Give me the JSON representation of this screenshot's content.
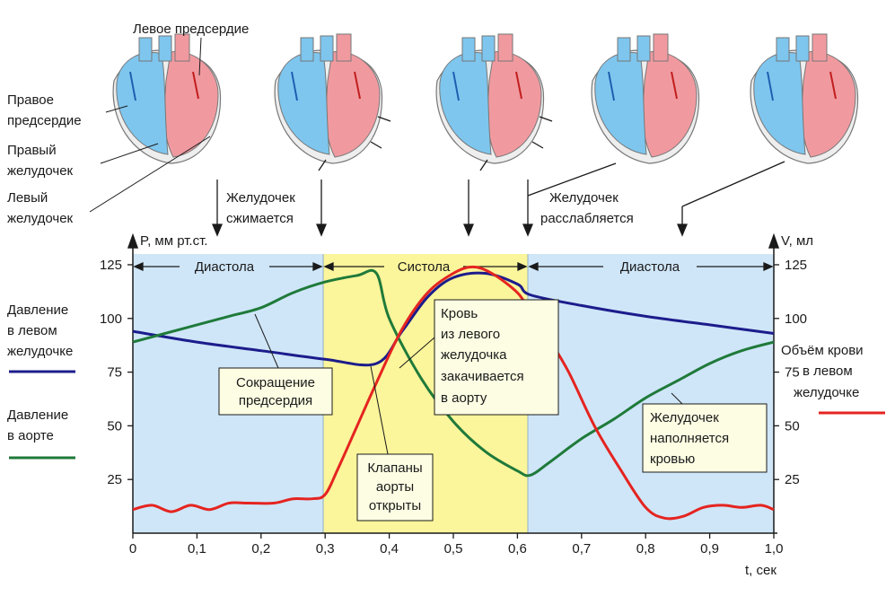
{
  "colors": {
    "diastole_bg": "#cfe6f8",
    "systole_bg": "#fbf59b",
    "ventricle_pressure": "#1c1c8c",
    "aorta_pressure": "#1f7a3a",
    "ventricle_volume": "#e52420",
    "heart_red": "#f09aa0",
    "heart_blue": "#7ec6ee",
    "annotation_box": "#fdfde3"
  },
  "hearts": {
    "left_atrium": "Левое предсердие",
    "right_atrium": [
      "Правое",
      "предсердие"
    ],
    "right_ventricle": [
      "Правый",
      "желудочек"
    ],
    "left_ventricle": [
      "Левый",
      "желудочек"
    ],
    "ventricle_contracts": [
      "Желудочек",
      "сжимается"
    ],
    "ventricle_relaxes": [
      "Желудочек",
      "расслабляется"
    ]
  },
  "legend": {
    "lv_pressure": [
      "Давление",
      "в левом",
      "желудочке"
    ],
    "aorta_pressure": [
      "Давление",
      "в аорте"
    ],
    "lv_volume": [
      "Объём крови",
      "в левом",
      "желудочке"
    ]
  },
  "annotations": {
    "atrial_contraction": [
      "Сокращение",
      "предсердия"
    ],
    "aortic_valve_open": [
      "Клапаны",
      "аорты",
      "открыты"
    ],
    "ejection": [
      "Кровь",
      "из левого",
      "желудочка",
      "закачивается",
      "в аорту"
    ],
    "filling": [
      "Желудочек",
      "наполняется",
      "кровью"
    ]
  },
  "phases": {
    "diastole_1": "Диастола",
    "systole": "Систола",
    "diastole_2": "Диастола"
  },
  "chart_data": {
    "type": "line",
    "xlabel": "t, сек",
    "ylabel_left": "P, мм рт.ст.",
    "ylabel_right": "V, мл",
    "xlim": [
      0,
      1.0
    ],
    "ylim": [
      0,
      130
    ],
    "x_ticks": [
      "0",
      "0,1",
      "0,2",
      "0,3",
      "0,4",
      "0,5",
      "0,6",
      "0,7",
      "0,8",
      "0,9",
      "1,0"
    ],
    "y_ticks": [
      "25",
      "50",
      "75",
      "100",
      "125"
    ],
    "y_tick_values": [
      25,
      50,
      75,
      100,
      125
    ],
    "systole_interval": [
      0.3,
      0.62
    ],
    "series": [
      {
        "name": "Давление в левом желудочке",
        "color": "#1c1c8c",
        "points": [
          [
            0,
            94
          ],
          [
            0.1,
            89
          ],
          [
            0.2,
            85
          ],
          [
            0.3,
            81
          ],
          [
            0.38,
            79
          ],
          [
            0.42,
            94
          ],
          [
            0.46,
            110
          ],
          [
            0.5,
            119
          ],
          [
            0.55,
            121
          ],
          [
            0.6,
            116
          ],
          [
            0.62,
            111
          ],
          [
            0.7,
            106
          ],
          [
            0.8,
            101
          ],
          [
            0.9,
            97
          ],
          [
            1.0,
            93
          ]
        ]
      },
      {
        "name": "Давление в аорте",
        "color": "#1f7a3a",
        "points": [
          [
            0,
            89
          ],
          [
            0.05,
            93
          ],
          [
            0.1,
            97
          ],
          [
            0.15,
            101
          ],
          [
            0.2,
            105
          ],
          [
            0.25,
            112
          ],
          [
            0.3,
            117
          ],
          [
            0.35,
            120
          ],
          [
            0.38,
            121
          ],
          [
            0.4,
            100
          ],
          [
            0.45,
            72
          ],
          [
            0.5,
            52
          ],
          [
            0.55,
            38
          ],
          [
            0.6,
            29
          ],
          [
            0.62,
            27
          ],
          [
            0.65,
            33
          ],
          [
            0.7,
            44
          ],
          [
            0.75,
            53
          ],
          [
            0.8,
            63
          ],
          [
            0.85,
            71
          ],
          [
            0.9,
            79
          ],
          [
            0.95,
            85
          ],
          [
            1.0,
            89
          ]
        ]
      },
      {
        "name": "Объём крови в левом желудочке",
        "color": "#e52420",
        "points": [
          [
            0,
            11
          ],
          [
            0.03,
            13
          ],
          [
            0.06,
            10
          ],
          [
            0.09,
            13
          ],
          [
            0.12,
            11
          ],
          [
            0.15,
            14
          ],
          [
            0.18,
            14
          ],
          [
            0.22,
            14
          ],
          [
            0.25,
            16
          ],
          [
            0.28,
            16
          ],
          [
            0.3,
            18
          ],
          [
            0.32,
            30
          ],
          [
            0.35,
            50
          ],
          [
            0.38,
            70
          ],
          [
            0.42,
            95
          ],
          [
            0.46,
            112
          ],
          [
            0.5,
            121
          ],
          [
            0.53,
            124
          ],
          [
            0.56,
            121
          ],
          [
            0.6,
            112
          ],
          [
            0.62,
            103
          ],
          [
            0.65,
            90
          ],
          [
            0.68,
            75
          ],
          [
            0.72,
            50
          ],
          [
            0.76,
            30
          ],
          [
            0.8,
            12
          ],
          [
            0.83,
            7
          ],
          [
            0.86,
            8
          ],
          [
            0.89,
            12
          ],
          [
            0.92,
            13
          ],
          [
            0.95,
            12
          ],
          [
            0.98,
            13
          ],
          [
            1.0,
            11
          ]
        ]
      }
    ]
  }
}
